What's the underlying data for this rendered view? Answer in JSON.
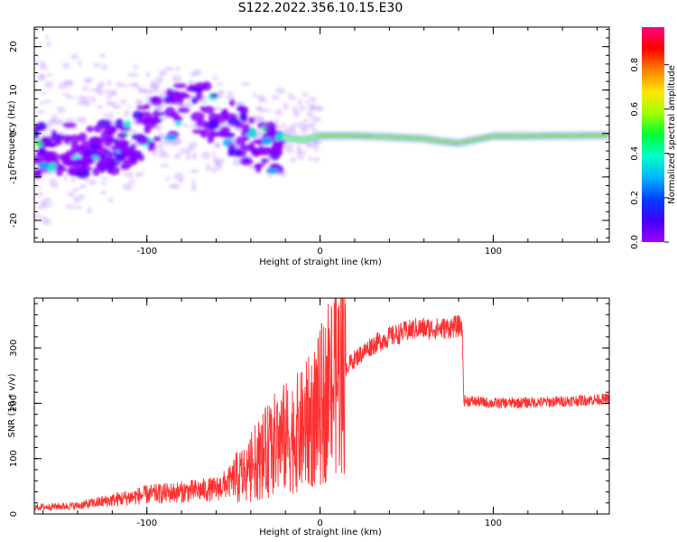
{
  "title": "S122.2022.356.10.15.E30",
  "colorbar": {
    "label": "Normalized spectral amplitude",
    "ticks": [
      "0.0",
      "0.2",
      "0.4",
      "0.6",
      "0.8"
    ],
    "tick_values": [
      0.0,
      0.2,
      0.4,
      0.6,
      0.8
    ],
    "range": [
      0,
      0.97
    ],
    "colormap": [
      "#a200ff",
      "#4000ff",
      "#0040ff",
      "#00b4ff",
      "#00ffc8",
      "#00ff32",
      "#a0ff00",
      "#ffe600",
      "#ff8200",
      "#ff0000",
      "#ff0080"
    ]
  },
  "chart_data": [
    {
      "type": "heatmap",
      "xlabel": "Height of straight line (km)",
      "ylabel": "Frequency (Hz)",
      "xlim": [
        -165,
        167
      ],
      "ylim": [
        -25,
        24.5
      ],
      "x_ticks": [
        -100,
        0,
        100
      ],
      "y_ticks": [
        -20,
        -10,
        0,
        10,
        20
      ],
      "description_of_content": "",
      "coherent_signal": {
        "x_range": [
          -20,
          167
        ],
        "frequency_track": [
          {
            "x": -20,
            "f": -1.0
          },
          {
            "x": -10,
            "f": -1.5
          },
          {
            "x": 0,
            "f": -0.5
          },
          {
            "x": 20,
            "f": -0.5
          },
          {
            "x": 40,
            "f": -0.8
          },
          {
            "x": 60,
            "f": -1.2
          },
          {
            "x": 70,
            "f": -1.8
          },
          {
            "x": 80,
            "f": -2.2
          },
          {
            "x": 90,
            "f": -1.4
          },
          {
            "x": 100,
            "f": -0.6
          },
          {
            "x": 120,
            "f": -0.6
          },
          {
            "x": 167,
            "f": -0.4
          }
        ]
      },
      "scatter_region": {
        "x_range": [
          -165,
          -20
        ],
        "f_center": [
          -3,
          5
        ]
      }
    },
    {
      "type": "line",
      "color": "#ff3030",
      "xlabel": "Height of straight line (km)",
      "ylabel": "SNR (10 * v/v)",
      "xlim": [
        -165,
        167
      ],
      "ylim": [
        0,
        390
      ],
      "x_ticks": [
        -100,
        0,
        100
      ],
      "y_ticks": [
        0,
        100,
        200,
        300
      ],
      "series_envelope": [
        {
          "x": -165,
          "y": 12
        },
        {
          "x": -140,
          "y": 15
        },
        {
          "x": -120,
          "y": 25
        },
        {
          "x": -100,
          "y": 35
        },
        {
          "x": -80,
          "y": 40
        },
        {
          "x": -60,
          "y": 45
        },
        {
          "x": -45,
          "y": 70
        },
        {
          "x": -35,
          "y": 100
        },
        {
          "x": -25,
          "y": 130
        },
        {
          "x": -10,
          "y": 150
        },
        {
          "x": 0,
          "y": 190
        },
        {
          "x": 10,
          "y": 250
        },
        {
          "x": 20,
          "y": 280
        },
        {
          "x": 30,
          "y": 305
        },
        {
          "x": 40,
          "y": 320
        },
        {
          "x": 55,
          "y": 335
        },
        {
          "x": 70,
          "y": 335
        },
        {
          "x": 82,
          "y": 340
        },
        {
          "x": 83,
          "y": 205
        },
        {
          "x": 100,
          "y": 200
        },
        {
          "x": 130,
          "y": 202
        },
        {
          "x": 167,
          "y": 208
        }
      ]
    }
  ]
}
